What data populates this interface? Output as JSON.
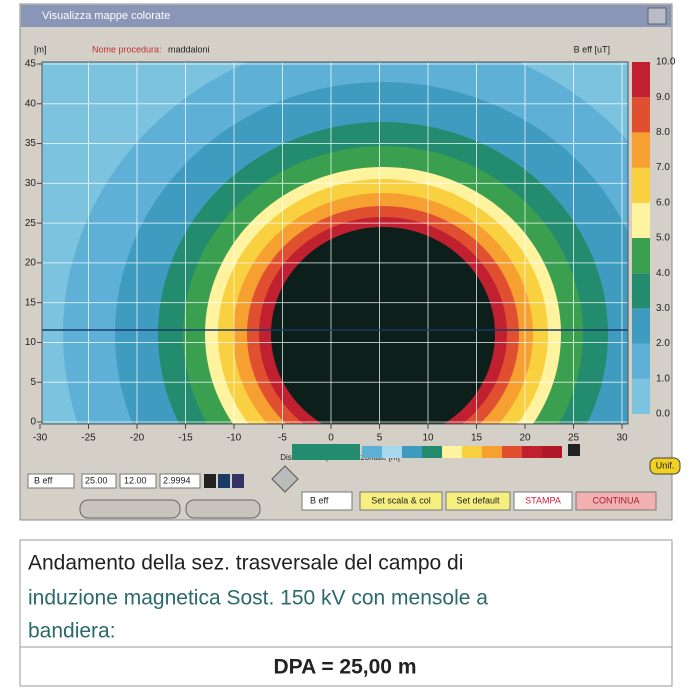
{
  "window": {
    "title": "Visualizza mappe colorate"
  },
  "header": {
    "unit_y": "[m]",
    "name_label": "Nome procedura:",
    "name_value": "maddaloni",
    "unit_field": "B eff [uT]"
  },
  "plot": {
    "xticks": [
      -30,
      -25,
      -20,
      -15,
      -10,
      -5,
      0,
      5,
      10,
      15,
      20,
      25,
      30
    ],
    "yticks": [
      0,
      5,
      10,
      15,
      20,
      25,
      30,
      35,
      40,
      45
    ],
    "x_label": "Distanza sul piano orizzontale [m]",
    "colorbar_ticks": [
      "0.0",
      "1.0",
      "2.0",
      "3.0",
      "4.0",
      "5.0",
      "6.0",
      "7.0",
      "8.0",
      "9.0",
      "10.0"
    ]
  },
  "controls": {
    "field_label": "B eff",
    "input_1": "25.00",
    "input_2": "12.00",
    "input_3": "2.9994",
    "unif": "Unif.",
    "field_select": "B eff",
    "set_scale": "Set scala & col",
    "set_default": "Set default",
    "print": "STAMPA",
    "continue": "CONTINUA"
  },
  "caption": {
    "line_1": "Andamento della sez. trasversale del campo di",
    "line_2": "induzione magnetica Sost. 150 kV con mensole a",
    "line_3": "bandiera:",
    "dpa": "DPA = 25,00  m"
  }
}
